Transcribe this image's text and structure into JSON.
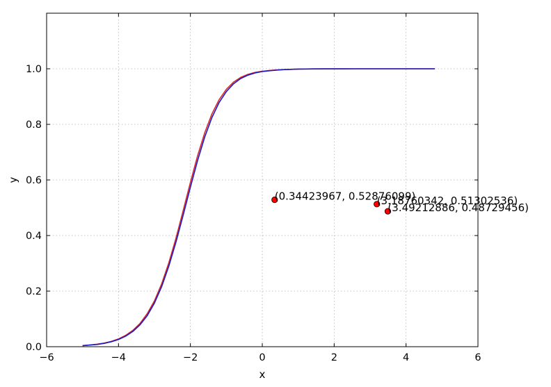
{
  "chart_data": {
    "type": "line",
    "title": "",
    "xlabel": "x",
    "ylabel": "y",
    "xlim": [
      -6,
      6
    ],
    "ylim": [
      0.0,
      1.2
    ],
    "grid": true,
    "x_ticks": [
      -6,
      -4,
      -2,
      0,
      2,
      4,
      6
    ],
    "x_tick_labels": [
      "−6",
      "−4",
      "−2",
      "0",
      "2",
      "4",
      "6"
    ],
    "y_ticks": [
      0.0,
      0.2,
      0.4,
      0.6,
      0.8,
      1.0
    ],
    "y_tick_labels": [
      "0.0",
      "0.2",
      "0.4",
      "0.6",
      "0.8",
      "1.0"
    ],
    "series": [
      {
        "color": "#d62728",
        "x": [
          -5.0,
          -4.8,
          -4.6,
          -4.4,
          -4.2,
          -4.0,
          -3.8,
          -3.6,
          -3.4,
          -3.2,
          -3.0,
          -2.8,
          -2.6,
          -2.4,
          -2.2,
          -2.0,
          -1.8,
          -1.6,
          -1.4,
          -1.2,
          -1.0,
          -0.8,
          -0.6,
          -0.4,
          -0.2,
          0.0,
          0.2,
          0.4,
          0.6,
          0.8,
          1.0,
          1.4,
          1.8,
          2.2,
          2.6,
          3.0,
          3.4,
          3.8,
          4.2,
          4.6,
          4.8
        ],
        "y": [
          0.004,
          0.006,
          0.009,
          0.013,
          0.019,
          0.028,
          0.041,
          0.059,
          0.084,
          0.119,
          0.165,
          0.226,
          0.302,
          0.391,
          0.49,
          0.591,
          0.687,
          0.77,
          0.838,
          0.889,
          0.926,
          0.952,
          0.969,
          0.98,
          0.987,
          0.991,
          0.994,
          0.996,
          0.997,
          0.998,
          0.999,
          0.9995,
          0.9998,
          0.9999,
          1.0,
          1.0,
          1.0,
          1.0,
          1.0,
          1.0,
          1.0
        ]
      },
      {
        "color": "#1a1acc",
        "x": [
          -5.0,
          -4.8,
          -4.6,
          -4.4,
          -4.2,
          -4.0,
          -3.8,
          -3.6,
          -3.4,
          -3.2,
          -3.0,
          -2.8,
          -2.6,
          -2.4,
          -2.2,
          -2.0,
          -1.8,
          -1.6,
          -1.4,
          -1.2,
          -1.0,
          -0.8,
          -0.6,
          -0.4,
          -0.2,
          0.0,
          0.2,
          0.4,
          0.6,
          0.8,
          1.0,
          1.4,
          1.8,
          2.2,
          2.6,
          3.0,
          3.4,
          3.8,
          4.2,
          4.6,
          4.8
        ],
        "y": [
          0.004,
          0.006,
          0.008,
          0.012,
          0.018,
          0.026,
          0.038,
          0.055,
          0.079,
          0.112,
          0.157,
          0.216,
          0.29,
          0.377,
          0.474,
          0.574,
          0.67,
          0.755,
          0.825,
          0.879,
          0.918,
          0.946,
          0.965,
          0.977,
          0.985,
          0.99,
          0.993,
          0.995,
          0.997,
          0.998,
          0.999,
          0.9995,
          0.9998,
          0.9999,
          1.0,
          1.0,
          1.0,
          1.0,
          1.0,
          1.0,
          1.0
        ]
      }
    ],
    "points": [
      {
        "x": 0.34423967,
        "y": 0.52876099,
        "label": "(0.34423967, 0.52876099)"
      },
      {
        "x": 3.18760342,
        "y": 0.51302536,
        "label": "(3.18760342, 0.51302536)"
      },
      {
        "x": 3.49212886,
        "y": 0.48729456,
        "label": "(3.49212886, 0.48729456)"
      }
    ],
    "point_color": "#ff0000"
  }
}
